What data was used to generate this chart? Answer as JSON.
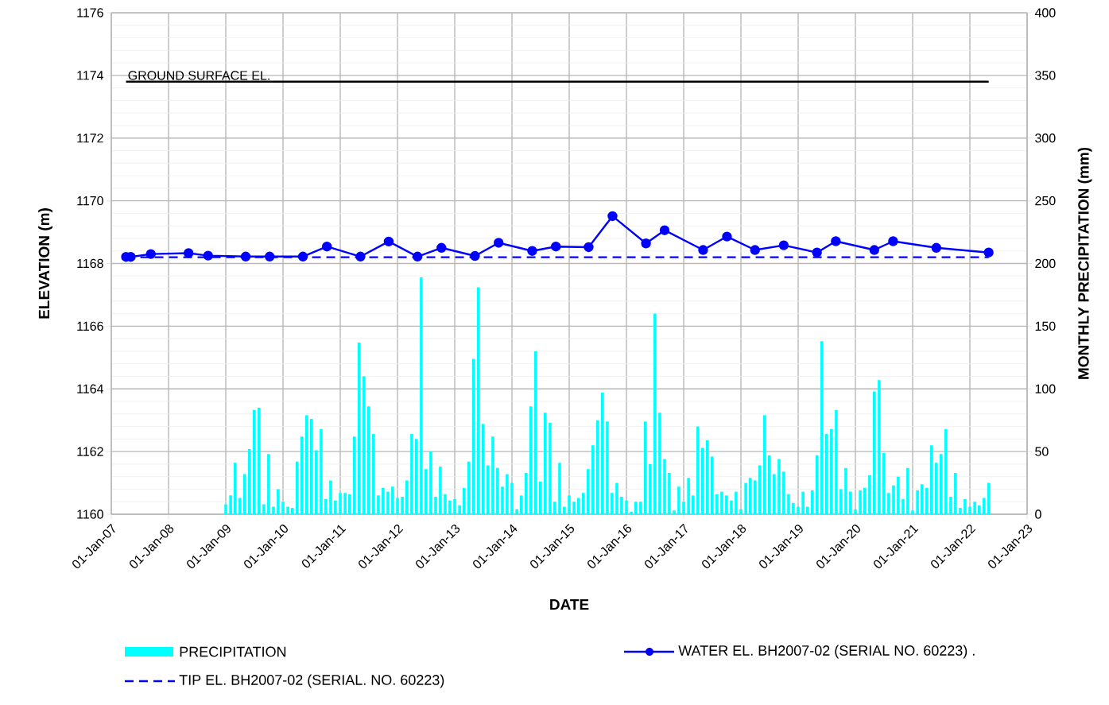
{
  "chart_data": {
    "type": "line",
    "xlabel": "DATE",
    "ylabel": "ELEVATION (m)",
    "y2label": "MONTHLY PRECIPITATION (mm)",
    "xlim": [
      "2007-01-01",
      "2023-01-01"
    ],
    "xticks": [
      {
        "value": "2007-01-01",
        "label": "01-Jan-07"
      },
      {
        "value": "2008-01-01",
        "label": "01-Jan-08"
      },
      {
        "value": "2009-01-01",
        "label": "01-Jan-09"
      },
      {
        "value": "2010-01-01",
        "label": "01-Jan-10"
      },
      {
        "value": "2011-01-01",
        "label": "01-Jan-11"
      },
      {
        "value": "2012-01-01",
        "label": "01-Jan-12"
      },
      {
        "value": "2013-01-01",
        "label": "01-Jan-13"
      },
      {
        "value": "2014-01-01",
        "label": "01-Jan-14"
      },
      {
        "value": "2015-01-01",
        "label": "01-Jan-15"
      },
      {
        "value": "2016-01-01",
        "label": "01-Jan-16"
      },
      {
        "value": "2017-01-01",
        "label": "01-Jan-17"
      },
      {
        "value": "2018-01-01",
        "label": "01-Jan-18"
      },
      {
        "value": "2019-01-01",
        "label": "01-Jan-19"
      },
      {
        "value": "2020-01-01",
        "label": "01-Jan-20"
      },
      {
        "value": "2021-01-01",
        "label": "01-Jan-21"
      },
      {
        "value": "2022-01-01",
        "label": "01-Jan-22"
      },
      {
        "value": "2023-01-01",
        "label": "01-Jan-23"
      }
    ],
    "ylim": [
      1160,
      1176
    ],
    "yticks": [
      1160,
      1162,
      1164,
      1166,
      1168,
      1170,
      1172,
      1174,
      1176
    ],
    "y2lim": [
      0,
      400
    ],
    "y2ticks": [
      0,
      50,
      100,
      150,
      200,
      250,
      300,
      350,
      400
    ],
    "grid": true,
    "legend": "bottom",
    "ref_lines": [
      {
        "axis": "y",
        "value": 1173.8,
        "label": "GROUND SURFACE EL.",
        "color": "#000000"
      }
    ],
    "series": [
      {
        "name": "PRECIPITATION",
        "type": "bar",
        "axis": "y2",
        "color": "#00ffff",
        "x": [
          "2009-01",
          "2009-02",
          "2009-03",
          "2009-04",
          "2009-05",
          "2009-06",
          "2009-07",
          "2009-08",
          "2009-09",
          "2009-10",
          "2009-11",
          "2009-12",
          "2010-01",
          "2010-02",
          "2010-03",
          "2010-04",
          "2010-05",
          "2010-06",
          "2010-07",
          "2010-08",
          "2010-09",
          "2010-10",
          "2010-11",
          "2010-12",
          "2011-01",
          "2011-02",
          "2011-03",
          "2011-04",
          "2011-05",
          "2011-06",
          "2011-07",
          "2011-08",
          "2011-09",
          "2011-10",
          "2011-11",
          "2011-12",
          "2012-01",
          "2012-02",
          "2012-03",
          "2012-04",
          "2012-05",
          "2012-06",
          "2012-07",
          "2012-08",
          "2012-09",
          "2012-10",
          "2012-11",
          "2012-12",
          "2013-01",
          "2013-02",
          "2013-03",
          "2013-04",
          "2013-05",
          "2013-06",
          "2013-07",
          "2013-08",
          "2013-09",
          "2013-10",
          "2013-11",
          "2013-12",
          "2014-01",
          "2014-02",
          "2014-03",
          "2014-04",
          "2014-05",
          "2014-06",
          "2014-07",
          "2014-08",
          "2014-09",
          "2014-10",
          "2014-11",
          "2014-12",
          "2015-01",
          "2015-02",
          "2015-03",
          "2015-04",
          "2015-05",
          "2015-06",
          "2015-07",
          "2015-08",
          "2015-09",
          "2015-10",
          "2015-11",
          "2015-12",
          "2016-01",
          "2016-02",
          "2016-03",
          "2016-04",
          "2016-05",
          "2016-06",
          "2016-07",
          "2016-08",
          "2016-09",
          "2016-10",
          "2016-11",
          "2016-12",
          "2017-01",
          "2017-02",
          "2017-03",
          "2017-04",
          "2017-05",
          "2017-06",
          "2017-07",
          "2017-08",
          "2017-09",
          "2017-10",
          "2017-11",
          "2017-12",
          "2018-01",
          "2018-02",
          "2018-03",
          "2018-04",
          "2018-05",
          "2018-06",
          "2018-07",
          "2018-08",
          "2018-09",
          "2018-10",
          "2018-11",
          "2018-12",
          "2019-01",
          "2019-02",
          "2019-03",
          "2019-04",
          "2019-05",
          "2019-06",
          "2019-07",
          "2019-08",
          "2019-09",
          "2019-10",
          "2019-11",
          "2019-12",
          "2020-01",
          "2020-02",
          "2020-03",
          "2020-04",
          "2020-05",
          "2020-06",
          "2020-07",
          "2020-08",
          "2020-09",
          "2020-10",
          "2020-11",
          "2020-12",
          "2021-01",
          "2021-02",
          "2021-03",
          "2021-04",
          "2021-05",
          "2021-06",
          "2021-07",
          "2021-08",
          "2021-09",
          "2021-10",
          "2021-11",
          "2021-12",
          "2022-01",
          "2022-02",
          "2022-03",
          "2022-04",
          "2022-05"
        ],
        "values": [
          8,
          15,
          41,
          13,
          32,
          52,
          83,
          85,
          8,
          48,
          6,
          20,
          10,
          6,
          5,
          42,
          62,
          79,
          76,
          51,
          68,
          12,
          27,
          11,
          17,
          17,
          16,
          62,
          137,
          110,
          86,
          64,
          15,
          21,
          18,
          22,
          13,
          14,
          27,
          64,
          60,
          189,
          36,
          50,
          14,
          38,
          16,
          11,
          12,
          7,
          21,
          42,
          124,
          181,
          72,
          39,
          62,
          37,
          22,
          32,
          25,
          4,
          15,
          33,
          86,
          130,
          26,
          81,
          73,
          10,
          41,
          6,
          15,
          10,
          13,
          17,
          36,
          55,
          75,
          97,
          74,
          17,
          25,
          14,
          11,
          2,
          10,
          10,
          74,
          40,
          160,
          81,
          44,
          33,
          3,
          22,
          10,
          29,
          15,
          70,
          53,
          59,
          46,
          16,
          18,
          15,
          11,
          18,
          4,
          25,
          29,
          27,
          39,
          79,
          47,
          32,
          44,
          34,
          16,
          9,
          6,
          18,
          6,
          19,
          47,
          138,
          64,
          68,
          83,
          20,
          37,
          18,
          4,
          19,
          21,
          31,
          98,
          107,
          49,
          17,
          23,
          30,
          12,
          37,
          3,
          19,
          24,
          21,
          55,
          41,
          48,
          68,
          14,
          33,
          5,
          12,
          6,
          10,
          7,
          13,
          25
        ]
      },
      {
        "name": "WATER EL. BH2007-02 (SERIAL NO. 60223) .",
        "color": "#0000ff",
        "marker": "circle",
        "line_style": "solid",
        "x": [
          "2007-04-05",
          "2007-05-05",
          "2007-09-10",
          "2008-05-08",
          "2008-09-10",
          "2009-05-08",
          "2009-10-08",
          "2010-05-08",
          "2010-10-08",
          "2011-05-10",
          "2011-11-06",
          "2012-05-08",
          "2012-10-08",
          "2013-05-10",
          "2013-10-08",
          "2014-05-10",
          "2014-10-08",
          "2015-05-05",
          "2015-10-04",
          "2016-05-05",
          "2016-09-01",
          "2017-05-05",
          "2017-10-04",
          "2018-04-01",
          "2018-10-01",
          "2019-05-01",
          "2019-08-29",
          "2020-05-01",
          "2020-08-29",
          "2021-06-01",
          "2022-05-01"
        ],
        "values": [
          1168.21,
          1168.21,
          1168.3,
          1168.33,
          1168.25,
          1168.22,
          1168.22,
          1168.22,
          1168.54,
          1168.22,
          1168.7,
          1168.22,
          1168.5,
          1168.24,
          1168.66,
          1168.4,
          1168.54,
          1168.52,
          1169.51,
          1168.64,
          1169.06,
          1168.43,
          1168.86,
          1168.43,
          1168.58,
          1168.35,
          1168.71,
          1168.43,
          1168.71,
          1168.5,
          1168.35
        ]
      },
      {
        "name": "TIP EL. BH2007-02 (SERIAL. NO. 60223)",
        "color": "#0000ff",
        "marker": "none",
        "line_style": "dashed",
        "x": [
          "2007-04-05",
          "2022-05-01"
        ],
        "values": [
          1168.2,
          1168.2
        ]
      }
    ]
  }
}
